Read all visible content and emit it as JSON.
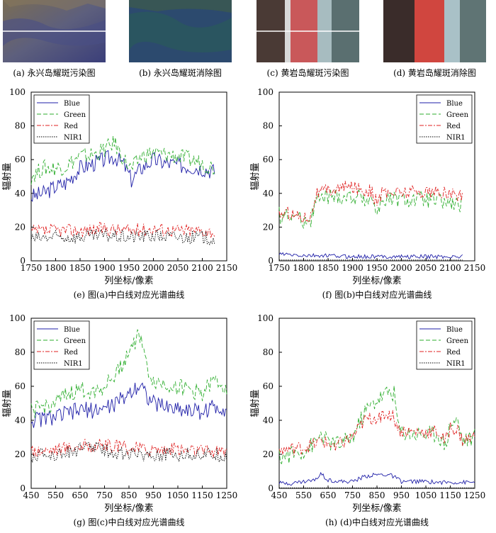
{
  "thumbnails": [
    {
      "caption": "(a) 永兴岛耀斑污染图",
      "has_line": true
    },
    {
      "caption": "(b) 永兴岛耀斑消除图",
      "has_line": false
    },
    {
      "caption": "(c) 黄岩岛耀斑污染图",
      "has_line": true
    },
    {
      "caption": "(d) 黄岩岛耀斑消除图",
      "has_line": false
    }
  ],
  "colors": {
    "blue": "#1f1fa8",
    "green": "#2eae2e",
    "red": "#e02020",
    "nir": "#000000"
  },
  "chart_data": [
    {
      "type": "line",
      "caption": "(e) 图(a)中白线对应光谱曲线",
      "xlabel": "列坐标/像素",
      "ylabel": "辐射量",
      "xlim": [
        1750,
        2150
      ],
      "ylim": [
        0,
        100
      ],
      "xticks": [
        1750,
        1800,
        1850,
        1900,
        1950,
        2000,
        2050,
        2100,
        2150
      ],
      "yticks": [
        0,
        20,
        40,
        60,
        80,
        100
      ],
      "legend": [
        "Blue",
        "Green",
        "Red",
        "NIR1"
      ],
      "legend_position": "top-left",
      "series": [
        {
          "name": "Blue",
          "x": [
            1750,
            1775,
            1800,
            1820,
            1850,
            1880,
            1900,
            1920,
            1940,
            1955,
            1975,
            2000,
            2025,
            2050,
            2075,
            2100,
            2125
          ],
          "values": [
            38,
            40,
            44,
            46,
            55,
            58,
            60,
            62,
            57,
            48,
            55,
            60,
            58,
            57,
            56,
            55,
            53
          ]
        },
        {
          "name": "Green",
          "x": [
            1750,
            1775,
            1800,
            1820,
            1850,
            1880,
            1900,
            1920,
            1940,
            1955,
            1975,
            2000,
            2025,
            2050,
            2075,
            2100,
            2125
          ],
          "values": [
            50,
            55,
            55,
            56,
            62,
            63,
            66,
            70,
            60,
            54,
            62,
            64,
            63,
            62,
            60,
            58,
            55
          ]
        },
        {
          "name": "Red",
          "x": [
            1750,
            1800,
            1850,
            1900,
            1950,
            2000,
            2050,
            2100,
            2125
          ],
          "values": [
            17,
            18,
            18,
            19,
            18,
            19,
            18,
            18,
            17
          ]
        },
        {
          "name": "NIR1",
          "x": [
            1750,
            1800,
            1850,
            1900,
            1950,
            2000,
            2050,
            2100,
            2125
          ],
          "values": [
            13,
            14,
            14,
            15,
            14,
            15,
            14,
            14,
            13
          ]
        }
      ]
    },
    {
      "type": "line",
      "caption": "(f) 图(b)中白线对应光谱曲线",
      "xlabel": "列坐标/像素",
      "ylabel": "辐射量",
      "xlim": [
        1750,
        2150
      ],
      "ylim": [
        0,
        100
      ],
      "xticks": [
        1750,
        1800,
        1850,
        1900,
        1950,
        2000,
        2050,
        2100,
        2150
      ],
      "yticks": [
        0,
        20,
        40,
        60,
        80,
        100
      ],
      "legend": [
        "Blue",
        "Green",
        "Red",
        "NIR1"
      ],
      "legend_position": "top-right",
      "series": [
        {
          "name": "Blue",
          "x": [
            1750,
            1800,
            1850,
            1900,
            1950,
            2000,
            2050,
            2100,
            2125
          ],
          "values": [
            4,
            3,
            3,
            2.5,
            2.5,
            2.5,
            2.5,
            2.5,
            2.5
          ]
        },
        {
          "name": "Green",
          "x": [
            1750,
            1775,
            1800,
            1815,
            1825,
            1850,
            1900,
            1940,
            1950,
            1960,
            2000,
            2050,
            2100,
            2125
          ],
          "values": [
            27,
            27,
            24,
            25,
            36,
            38,
            38,
            37,
            28,
            36,
            36,
            36,
            34,
            32
          ]
        },
        {
          "name": "Red",
          "x": [
            1750,
            1775,
            1800,
            1815,
            1825,
            1850,
            1900,
            1940,
            1950,
            1960,
            2000,
            2050,
            2100,
            2125
          ],
          "values": [
            28,
            28,
            26,
            27,
            40,
            42,
            44,
            41,
            34,
            40,
            41,
            41,
            40,
            38
          ]
        },
        {
          "name": "NIR1",
          "x": [
            1750,
            2125
          ],
          "values": [
            0.5,
            0.5
          ]
        }
      ]
    },
    {
      "type": "line",
      "caption": "(g) 图(c)中白线对应光谱曲线",
      "xlabel": "列坐标/像素",
      "ylabel": "辐射量",
      "xlim": [
        450,
        1250
      ],
      "ylim": [
        0,
        100
      ],
      "xticks": [
        450,
        550,
        650,
        750,
        850,
        950,
        1050,
        1150,
        1250
      ],
      "yticks": [
        0,
        20,
        40,
        60,
        80,
        100
      ],
      "legend": [
        "Blue",
        "Green",
        "Red",
        "NIR1"
      ],
      "legend_position": "top-left",
      "series": [
        {
          "name": "Blue",
          "x": [
            450,
            500,
            550,
            600,
            650,
            700,
            750,
            800,
            850,
            880,
            900,
            920,
            950,
            1000,
            1050,
            1100,
            1150,
            1200,
            1250
          ],
          "values": [
            40,
            41,
            42,
            44,
            46,
            46,
            47,
            50,
            56,
            60,
            62,
            55,
            50,
            48,
            47,
            46,
            45,
            48,
            47
          ]
        },
        {
          "name": "Green",
          "x": [
            450,
            500,
            550,
            600,
            650,
            700,
            750,
            800,
            850,
            880,
            900,
            920,
            950,
            1000,
            1050,
            1100,
            1150,
            1200,
            1250
          ],
          "values": [
            45,
            48,
            50,
            55,
            58,
            57,
            60,
            68,
            80,
            88,
            90,
            72,
            63,
            61,
            60,
            58,
            56,
            63,
            60
          ]
        },
        {
          "name": "Red",
          "x": [
            450,
            550,
            650,
            750,
            850,
            950,
            1050,
            1150,
            1250
          ],
          "values": [
            22,
            23,
            25,
            25,
            24,
            23,
            23,
            22,
            22
          ]
        },
        {
          "name": "NIR1",
          "x": [
            450,
            550,
            650,
            700,
            750,
            850,
            950,
            1050,
            1150,
            1250
          ],
          "values": [
            19,
            20,
            23,
            25,
            22,
            20,
            20,
            20,
            20,
            19
          ]
        }
      ]
    },
    {
      "type": "line",
      "caption": "(h) (d)中白线对应光谱曲线",
      "xlabel": "列坐标/像素",
      "ylabel": "辐射量",
      "xlim": [
        450,
        1250
      ],
      "ylim": [
        0,
        100
      ],
      "xticks": [
        450,
        550,
        650,
        750,
        850,
        950,
        1050,
        1150,
        1250
      ],
      "yticks": [
        0,
        20,
        40,
        60,
        80,
        100
      ],
      "legend": [
        "Blue",
        "Green",
        "Red",
        "NIR1"
      ],
      "legend_position": "top-right",
      "series": [
        {
          "name": "Blue",
          "x": [
            450,
            500,
            550,
            600,
            620,
            650,
            700,
            750,
            800,
            850,
            900,
            930,
            950,
            1000,
            1050,
            1100,
            1150,
            1200,
            1250
          ],
          "values": [
            3,
            3,
            4,
            5,
            9,
            5,
            4,
            4,
            7,
            8,
            8,
            6,
            4,
            4,
            4,
            3.5,
            3.5,
            3.5,
            3.5
          ]
        },
        {
          "name": "Green",
          "x": [
            450,
            500,
            550,
            600,
            620,
            650,
            700,
            750,
            800,
            850,
            900,
            920,
            940,
            1000,
            1050,
            1100,
            1130,
            1150,
            1180,
            1200,
            1250
          ],
          "values": [
            18,
            20,
            22,
            27,
            32,
            27,
            26,
            30,
            45,
            52,
            57,
            56,
            34,
            32,
            32,
            32,
            25,
            38,
            40,
            28,
            30
          ]
        },
        {
          "name": "Red",
          "x": [
            450,
            500,
            550,
            600,
            620,
            650,
            700,
            750,
            800,
            850,
            900,
            920,
            940,
            1000,
            1050,
            1100,
            1130,
            1150,
            1180,
            1200,
            1250
          ],
          "values": [
            22,
            23,
            24,
            26,
            28,
            26,
            26,
            30,
            40,
            42,
            44,
            42,
            34,
            33,
            33,
            33,
            27,
            36,
            34,
            28,
            30
          ]
        },
        {
          "name": "NIR1",
          "x": [
            450,
            1250
          ],
          "values": [
            0.3,
            0.3
          ]
        }
      ]
    }
  ]
}
